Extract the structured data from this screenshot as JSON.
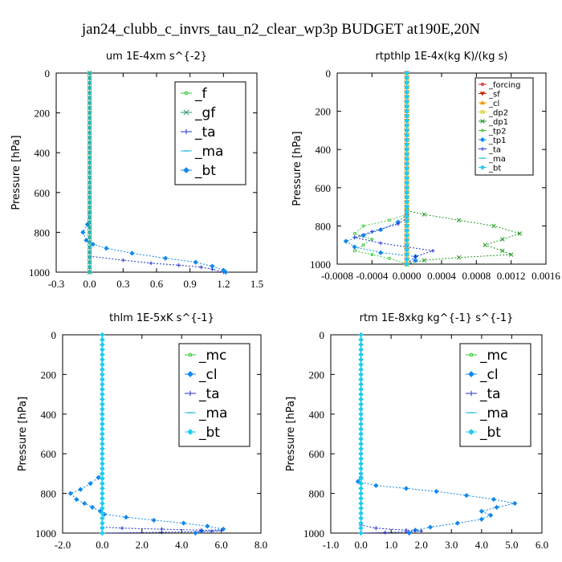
{
  "title": "jan24_clubb_c_invrs_tau_n2_clear_wp3p  BUDGET at190E,20N",
  "chart_data": [
    {
      "type": "line",
      "title": "um  1E-4xm s^{-2}",
      "ylabel": "Pressure [hPa]",
      "xlim": [
        -0.3,
        1.5
      ],
      "ylim": [
        1000,
        0
      ],
      "y_ticks": [
        0,
        200,
        400,
        600,
        800,
        1000
      ],
      "x_ticks": [
        -0.3,
        0,
        0.3,
        0.6,
        0.9,
        1.2,
        1.5
      ],
      "x_tick_labels": [
        "-0.3",
        "0.0",
        "0.3",
        "0.6",
        "0.9",
        "1.2",
        "1.5"
      ],
      "legend": {
        "position": "top-right",
        "size": "large"
      },
      "series": [
        {
          "name": "_f",
          "color": "#33cc33",
          "marker": "circle",
          "x": [
            0,
            0
          ],
          "y": [
            0,
            1000
          ]
        },
        {
          "name": "_gf",
          "color": "#229977",
          "marker": "x",
          "x": [
            0,
            0
          ],
          "y": [
            0,
            1000
          ]
        },
        {
          "name": "_ta",
          "color": "#2233cc",
          "marker": "plus",
          "x": [
            0,
            0,
            0,
            0,
            0,
            0,
            0,
            0,
            0.3,
            0.55,
            0.8,
            1.0,
            1.1,
            1.2
          ],
          "y": [
            0,
            300,
            500,
            700,
            800,
            850,
            900,
            920,
            940,
            955,
            965,
            975,
            985,
            1000
          ]
        },
        {
          "name": "_ma",
          "color": "#22bbdd",
          "marker": "dash",
          "x": [
            0,
            0
          ],
          "y": [
            0,
            1000
          ]
        },
        {
          "name": "_bt",
          "color": "#1188ee",
          "marker": "diamond",
          "x": [
            0,
            0,
            0,
            -0.02,
            -0.06,
            -0.03,
            0.03,
            0.15,
            0.38,
            0.68,
            0.95,
            1.1,
            1.2,
            1.22
          ],
          "y": [
            0,
            400,
            700,
            760,
            800,
            840,
            860,
            880,
            905,
            930,
            950,
            970,
            990,
            1000
          ]
        }
      ]
    },
    {
      "type": "line",
      "title": "rtpthlp  1E-4x(kg K)/(kg s)",
      "ylabel": "Pressure [hPa]",
      "xlim": [
        -0.0008,
        0.0016
      ],
      "ylim": [
        1000,
        0
      ],
      "y_ticks": [
        0,
        200,
        400,
        600,
        800,
        1000
      ],
      "x_ticks": [
        -0.0008,
        -0.0004,
        0,
        0.0004,
        0.0008,
        0.0012,
        0.0016
      ],
      "x_tick_labels": [
        "-0.0008",
        "-0.0004",
        "0.0000",
        "0.0004",
        "0.0008",
        "0.0012",
        "0.0016"
      ],
      "legend": {
        "position": "top-right",
        "size": "small"
      },
      "series": [
        {
          "name": "_forcing",
          "color": "#dd2222",
          "marker": "circle",
          "x": [
            0,
            0
          ],
          "y": [
            0,
            1000
          ]
        },
        {
          "name": "_sf",
          "color": "#cc2200",
          "marker": "triangle-down",
          "x": [
            0,
            0
          ],
          "y": [
            0,
            1000
          ]
        },
        {
          "name": "_cl",
          "color": "#ee9900",
          "marker": "triangle-up",
          "x": [
            0,
            0
          ],
          "y": [
            0,
            1000
          ]
        },
        {
          "name": "_dp2",
          "color": "#ddcc00",
          "marker": "square",
          "x": [
            0,
            0
          ],
          "y": [
            0,
            1000
          ]
        },
        {
          "name": "_dp1",
          "color": "#229922",
          "marker": "x",
          "x": [
            0,
            0,
            0,
            0.0002,
            0.0006,
            0.001,
            0.0013,
            0.0011,
            0.0009,
            0.0011,
            0.0012,
            0.0006,
            0.0002,
            0
          ],
          "y": [
            0,
            600,
            720,
            740,
            770,
            800,
            840,
            870,
            900,
            930,
            950,
            965,
            980,
            1000
          ]
        },
        {
          "name": "_tp2",
          "color": "#44cc44",
          "marker": "circle",
          "x": [
            0,
            0,
            0,
            -0.0002,
            -0.0005,
            -0.0006,
            -0.0004,
            -0.0005,
            -0.0006,
            -0.0004,
            -0.0002,
            0
          ],
          "y": [
            0,
            600,
            740,
            770,
            800,
            840,
            870,
            900,
            930,
            950,
            970,
            1000
          ]
        },
        {
          "name": "_tp1",
          "color": "#1188ee",
          "marker": "diamond",
          "x": [
            0,
            0,
            0,
            -0.0001,
            -0.0003,
            -0.0005,
            -0.0007,
            -0.0006,
            -0.0003,
            0.0001,
            0.0001,
            0
          ],
          "y": [
            0,
            600,
            740,
            780,
            820,
            850,
            880,
            910,
            940,
            960,
            980,
            1000
          ]
        },
        {
          "name": "_ta",
          "color": "#2233cc",
          "marker": "plus",
          "x": [
            0,
            0,
            0,
            -0.0001,
            -0.0004,
            -0.0006,
            -0.0003,
            0,
            0.0003,
            0.0001,
            0
          ],
          "y": [
            0,
            600,
            760,
            790,
            830,
            860,
            890,
            910,
            930,
            960,
            1000
          ]
        },
        {
          "name": "_ma",
          "color": "#22bbdd",
          "marker": "dash",
          "x": [
            0,
            0
          ],
          "y": [
            0,
            1000
          ]
        },
        {
          "name": "_bt",
          "color": "#22ccee",
          "marker": "diamond",
          "x": [
            0,
            0
          ],
          "y": [
            0,
            1000
          ]
        }
      ]
    },
    {
      "type": "line",
      "title": "thlm  1E-5xK s^{-1}",
      "ylabel": "Pressure [hPa]",
      "xlim": [
        -2.0,
        8.0
      ],
      "ylim": [
        1000,
        0
      ],
      "y_ticks": [
        0,
        200,
        400,
        600,
        800,
        1000
      ],
      "x_ticks": [
        -2,
        0,
        2,
        4,
        6,
        8
      ],
      "x_tick_labels": [
        "-2.0",
        "0.0",
        "2.0",
        "4.0",
        "6.0",
        "8.0"
      ],
      "legend": {
        "position": "top-right",
        "size": "large"
      },
      "series": [
        {
          "name": "_mc",
          "color": "#33cc33",
          "marker": "circle",
          "x": [
            0,
            0
          ],
          "y": [
            0,
            1000
          ]
        },
        {
          "name": "_cl",
          "color": "#1188ee",
          "marker": "diamond",
          "x": [
            0,
            0,
            -0.2,
            -0.6,
            -1.1,
            -1.6,
            -1.3,
            -0.9,
            -0.5,
            -0.1,
            0.1,
            1.2,
            2.6,
            4.1,
            5.3,
            6.1,
            5.0,
            4.7
          ],
          "y": [
            0,
            700,
            720,
            750,
            780,
            800,
            830,
            850,
            870,
            890,
            905,
            920,
            935,
            950,
            965,
            980,
            990,
            1000
          ]
        },
        {
          "name": "_ta",
          "color": "#2233cc",
          "marker": "plus",
          "x": [
            0,
            0,
            0,
            1.0,
            3.0,
            5.0,
            6.0,
            5.5,
            3.0,
            0
          ],
          "y": [
            0,
            900,
            970,
            975,
            980,
            985,
            988,
            992,
            996,
            1000
          ]
        },
        {
          "name": "_ma",
          "color": "#22bbdd",
          "marker": "dash",
          "x": [
            0,
            0
          ],
          "y": [
            0,
            1000
          ]
        },
        {
          "name": "_bt",
          "color": "#22ccee",
          "marker": "diamond",
          "x": [
            0,
            0
          ],
          "y": [
            0,
            1000
          ]
        }
      ]
    },
    {
      "type": "line",
      "title": "rtm  1E-8xkg kg^{-1} s^{-1}",
      "ylabel": "Pressure [hPa]",
      "xlim": [
        -1.0,
        6.0
      ],
      "ylim": [
        1000,
        0
      ],
      "y_ticks": [
        0,
        200,
        400,
        600,
        800,
        1000
      ],
      "x_ticks": [
        -1,
        0,
        1,
        2,
        3,
        4,
        5,
        6
      ],
      "x_tick_labels": [
        "-1.0",
        "0.0",
        "1.0",
        "2.0",
        "3.0",
        "4.0",
        "5.0",
        "6.0"
      ],
      "legend": {
        "position": "top-right",
        "size": "large"
      },
      "series": [
        {
          "name": "_mc",
          "color": "#33cc33",
          "marker": "circle",
          "x": [
            0,
            0
          ],
          "y": [
            0,
            1000
          ]
        },
        {
          "name": "_cl",
          "color": "#1188ee",
          "marker": "diamond",
          "x": [
            0,
            0,
            -0.1,
            0.5,
            1.5,
            2.5,
            3.5,
            4.4,
            5.1,
            4.5,
            4.0,
            4.3,
            4.0,
            3.2,
            2.3,
            1.8,
            1.6
          ],
          "y": [
            0,
            720,
            740,
            760,
            775,
            790,
            810,
            830,
            850,
            870,
            890,
            910,
            930,
            950,
            970,
            985,
            1000
          ]
        },
        {
          "name": "_ta",
          "color": "#2233cc",
          "marker": "plus",
          "x": [
            0,
            0,
            0.5,
            1.5,
            2.0,
            1.5,
            0.8,
            0
          ],
          "y": [
            0,
            960,
            975,
            985,
            990,
            994,
            997,
            1000
          ]
        },
        {
          "name": "_ma",
          "color": "#22bbdd",
          "marker": "dash",
          "x": [
            0,
            0
          ],
          "y": [
            0,
            1000
          ]
        },
        {
          "name": "_bt",
          "color": "#22ccee",
          "marker": "diamond",
          "x": [
            0,
            0
          ],
          "y": [
            0,
            1000
          ]
        }
      ]
    }
  ]
}
